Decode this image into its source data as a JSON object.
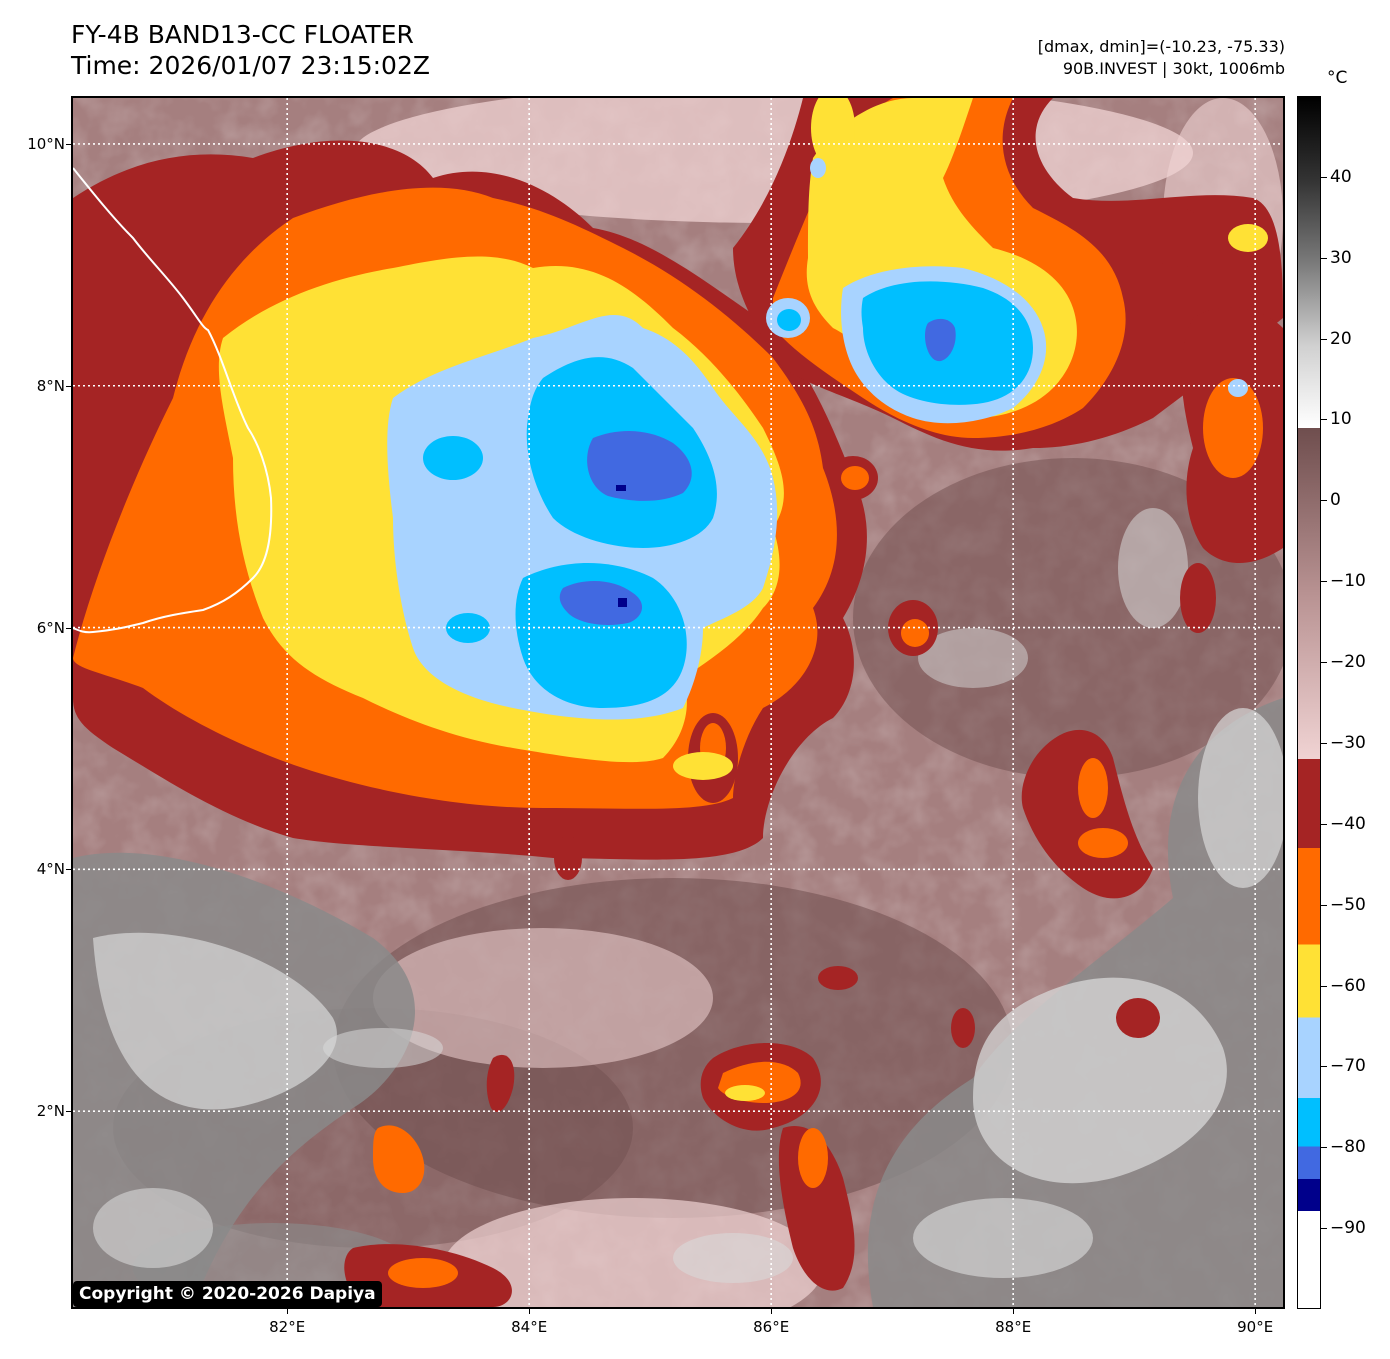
{
  "title": {
    "line1": "FY-4B BAND13-CC FLOATER",
    "line2": "Time: 2026/01/07 23:15:02Z"
  },
  "info": {
    "line1": "[dmax, dmin]=(-10.23, -75.33)",
    "line2": "90B.INVEST | 30kt, 1006mb"
  },
  "copyright": "Copyright © 2020-2026 Dapiya",
  "map": {
    "lon_range": [
      80.23,
      90.23
    ],
    "lat_range": [
      0.38,
      10.38
    ],
    "lat_labels": [
      {
        "value": 10,
        "text": "10°N"
      },
      {
        "value": 8,
        "text": "8°N"
      },
      {
        "value": 6,
        "text": "6°N"
      },
      {
        "value": 4,
        "text": "4°N"
      },
      {
        "value": 2,
        "text": "2°N"
      }
    ],
    "lon_labels": [
      {
        "value": 82,
        "text": "82°E"
      },
      {
        "value": 84,
        "text": "84°E"
      },
      {
        "value": 86,
        "text": "86°E"
      },
      {
        "value": 88,
        "text": "88°E"
      },
      {
        "value": 90,
        "text": "90°E"
      }
    ],
    "colors": {
      "deep": "#00008b",
      "violet": "#4169e1",
      "cyan": "#00bfff",
      "lightblue": "#a8d3ff",
      "yellow": "#ffe135",
      "orange": "#ff6a00",
      "darkred": "#a52424",
      "pink": "#f0d3d3",
      "mauve": "#a57f7f",
      "brown": "#6f4e4e",
      "lightgray": "#d8d8d8",
      "gray": "#8a8a8a",
      "coast": "#ffffff",
      "grid": "#ffffff"
    }
  },
  "colorbar": {
    "unit": "°C",
    "range": [
      -100,
      50
    ],
    "labels": [
      {
        "value": 40,
        "text": "40"
      },
      {
        "value": 30,
        "text": "30"
      },
      {
        "value": 20,
        "text": "20"
      },
      {
        "value": 10,
        "text": "10"
      },
      {
        "value": 0,
        "text": "0"
      },
      {
        "value": -10,
        "text": "−10"
      },
      {
        "value": -20,
        "text": "−20"
      },
      {
        "value": -30,
        "text": "−30"
      },
      {
        "value": -40,
        "text": "−40"
      },
      {
        "value": -50,
        "text": "−50"
      },
      {
        "value": -60,
        "text": "−60"
      },
      {
        "value": -70,
        "text": "−70"
      },
      {
        "value": -80,
        "text": "−80"
      },
      {
        "value": -90,
        "text": "−90"
      }
    ],
    "segments": [
      {
        "from": 9,
        "to": 50,
        "type": "gradient",
        "colors": [
          "#ffffff",
          "#d0d0d0",
          "#7a7a7a",
          "#333333",
          "#000000"
        ]
      },
      {
        "from": -32,
        "to": 9,
        "type": "gradient",
        "colors": [
          "#f0d3d3",
          "#b89292",
          "#6f4e4e"
        ]
      },
      {
        "from": -43,
        "to": -32,
        "color": "#a52424"
      },
      {
        "from": -55,
        "to": -43,
        "color": "#ff6a00"
      },
      {
        "from": -64,
        "to": -55,
        "color": "#ffe135"
      },
      {
        "from": -74,
        "to": -64,
        "color": "#a8d3ff"
      },
      {
        "from": -80,
        "to": -74,
        "color": "#00bfff"
      },
      {
        "from": -84,
        "to": -80,
        "color": "#4169e1"
      },
      {
        "from": -88,
        "to": -84,
        "color": "#00008b"
      },
      {
        "from": -100,
        "to": -88,
        "color": "#ffffff"
      }
    ]
  }
}
